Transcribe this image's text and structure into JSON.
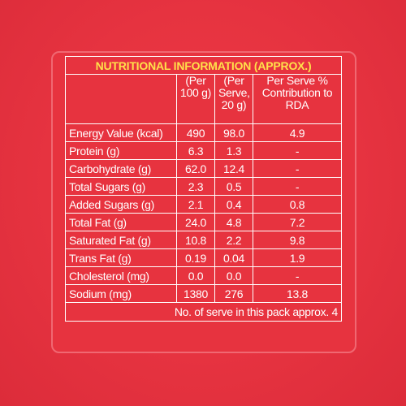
{
  "title": "NUTRITIONAL INFORMATION (APPROX.)",
  "headers": {
    "per100": "(Per 100 g)",
    "perServe": "(Per Serve, 20 g)",
    "rda": "Per Serve % Contribution to RDA"
  },
  "rows": [
    {
      "name": "Energy Value (kcal)",
      "per100": "490",
      "perServe": "98.0",
      "rda": "4.9"
    },
    {
      "name": "Protein (g)",
      "per100": "6.3",
      "perServe": "1.3",
      "rda": "-"
    },
    {
      "name": "Carbohydrate (g)",
      "per100": "62.0",
      "perServe": "12.4",
      "rda": "-"
    },
    {
      "name": "Total Sugars (g)",
      "per100": "2.3",
      "perServe": "0.5",
      "rda": "-"
    },
    {
      "name": "Added Sugars (g)",
      "per100": "2.1",
      "perServe": "0.4",
      "rda": "0.8"
    },
    {
      "name": "Total Fat (g)",
      "per100": "24.0",
      "perServe": "4.8",
      "rda": "7.2"
    },
    {
      "name": "Saturated Fat (g)",
      "per100": "10.8",
      "perServe": "2.2",
      "rda": "9.8"
    },
    {
      "name": "Trans Fat (g)",
      "per100": "0.19",
      "perServe": "0.04",
      "rda": "1.9"
    },
    {
      "name": "Cholesterol (mg)",
      "per100": "0.0",
      "perServe": "0.0",
      "rda": "-"
    },
    {
      "name": "Sodium (mg)",
      "per100": "1380",
      "perServe": "276",
      "rda": "13.8"
    }
  ],
  "footer": "No. of serve in this pack approx. 4",
  "colors": {
    "background": "#e8343f",
    "title": "#ffe14a",
    "text": "#ffffff"
  }
}
